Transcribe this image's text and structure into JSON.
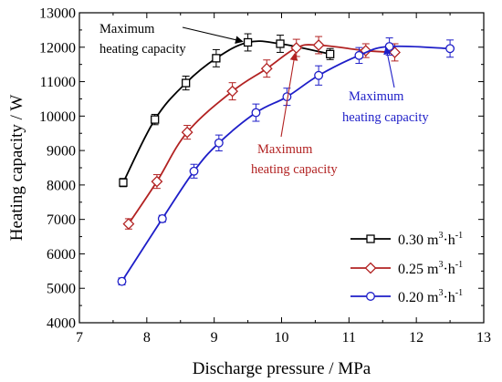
{
  "chart_data": {
    "type": "line",
    "xlabel": "Discharge pressure  / MPa",
    "ylabel": "Heating capacity  / W",
    "xlim": [
      7,
      13
    ],
    "ylim": [
      4000,
      13000
    ],
    "x_ticks": [
      "7",
      "8",
      "9",
      "10",
      "11",
      "12",
      "13"
    ],
    "y_ticks": [
      "4000",
      "5000",
      "6000",
      "7000",
      "8000",
      "9000",
      "10000",
      "11000",
      "12000",
      "13000"
    ],
    "grid": false,
    "legend_position": "bottom-right",
    "series": [
      {
        "name": "0.30 m³·h⁻¹",
        "legend_main": "0.30 m",
        "legend_sup": "3",
        "legend_mid": "·h",
        "legend_sup2": "-1",
        "color": "#000000",
        "marker": "square",
        "x": [
          7.65,
          8.12,
          8.58,
          9.03,
          9.5,
          9.98,
          10.72
        ],
        "y": [
          8070,
          9900,
          10960,
          11680,
          12140,
          12100,
          11800
        ],
        "err": [
          120,
          150,
          200,
          250,
          250,
          250,
          160
        ]
      },
      {
        "name": "0.25 m³·h⁻¹",
        "legend_main": "0.25 m",
        "legend_sup": "3",
        "legend_mid": "·h",
        "legend_sup2": "-1",
        "color": "#b22222",
        "marker": "diamond",
        "x": [
          7.73,
          8.15,
          8.6,
          9.27,
          9.78,
          10.22,
          10.55,
          11.25,
          11.68
        ],
        "y": [
          6870,
          8100,
          9530,
          10720,
          11380,
          11980,
          12060,
          11900,
          11850
        ],
        "err": [
          150,
          200,
          200,
          250,
          250,
          250,
          250,
          200,
          250
        ]
      },
      {
        "name": "0.20 m³·h⁻¹",
        "legend_main": "0.20 m",
        "legend_sup": "3",
        "legend_mid": "·h",
        "legend_sup2": "-1",
        "color": "#1e1ec8",
        "marker": "circle",
        "x": [
          7.63,
          8.23,
          8.7,
          9.07,
          9.62,
          10.08,
          10.55,
          11.15,
          11.6,
          12.5
        ],
        "y": [
          5200,
          7020,
          8400,
          9220,
          10100,
          10560,
          11180,
          11760,
          12020,
          11960
        ],
        "err": [
          100,
          100,
          200,
          230,
          250,
          250,
          280,
          230,
          250,
          250
        ]
      }
    ],
    "annotations": [
      {
        "line1": "Maximum",
        "line2": "heating capacity",
        "color": "#000000"
      },
      {
        "line1": "Maximum",
        "line2": "heating capacity",
        "color": "#1e1ec8"
      },
      {
        "line1": "Maximum",
        "line2": "heating capacity",
        "color": "#b22222"
      }
    ]
  }
}
